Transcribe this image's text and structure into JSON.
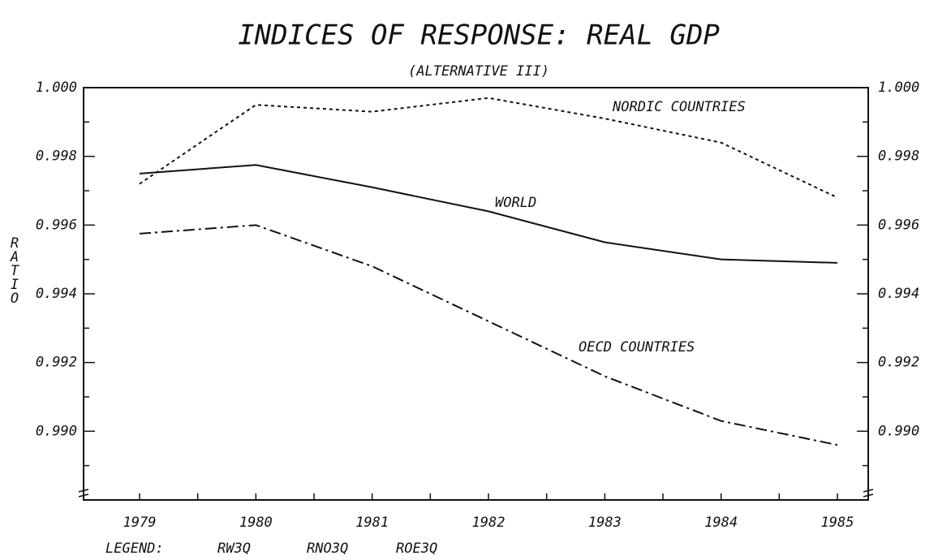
{
  "chart_data": {
    "type": "line",
    "title": "INDICES OF RESPONSE: REAL GDP",
    "subtitle": "(ALTERNATIVE III)",
    "y_label": "RATIO",
    "legend_title": "LEGEND:",
    "categories": [
      "1979",
      "1980",
      "1981",
      "1982",
      "1983",
      "1984",
      "1985"
    ],
    "series": [
      {
        "name": "WORLD",
        "code": "RW3Q",
        "dash": "solid",
        "color": "#111111",
        "values": [
          0.9975,
          0.99775,
          0.9971,
          0.9964,
          0.9955,
          0.995,
          0.9949
        ]
      },
      {
        "name": "NORDIC COUNTRIES",
        "code": "RNO3Q",
        "dash": "dotted",
        "color": "#111111",
        "values": [
          0.9972,
          0.9995,
          0.9993,
          0.9997,
          0.9991,
          0.9984,
          0.9968
        ]
      },
      {
        "name": "OECD COUNTRIES",
        "code": "ROE3Q",
        "dash": "dashdot",
        "color": "#111111",
        "values": [
          0.99575,
          0.996,
          0.9948,
          0.9932,
          0.9916,
          0.9903,
          0.9896
        ]
      }
    ],
    "ylim": [
      0.988,
      1.0
    ],
    "yticks": [
      {
        "value": 0.99,
        "label": "0.990"
      },
      0.992,
      0.994,
      0.996,
      0.998,
      {
        "value": 1.0,
        "label": "1.000"
      }
    ],
    "right_axis": true
  }
}
